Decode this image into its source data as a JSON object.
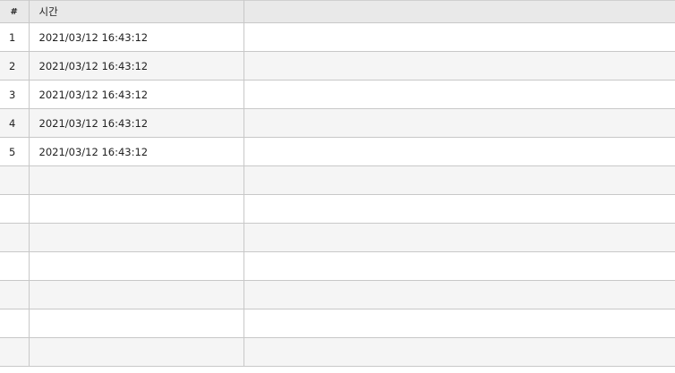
{
  "table": {
    "columns": [
      "#",
      "시간",
      ""
    ],
    "rows": [
      {
        "index": "1",
        "time": "2021/03/12 16:43:12"
      },
      {
        "index": "2",
        "time": "2021/03/12 16:43:12"
      },
      {
        "index": "3",
        "time": "2021/03/12 16:43:12"
      },
      {
        "index": "4",
        "time": "2021/03/12 16:43:12"
      },
      {
        "index": "5",
        "time": "2021/03/12 16:43:12"
      }
    ],
    "empty_rows": 7
  }
}
